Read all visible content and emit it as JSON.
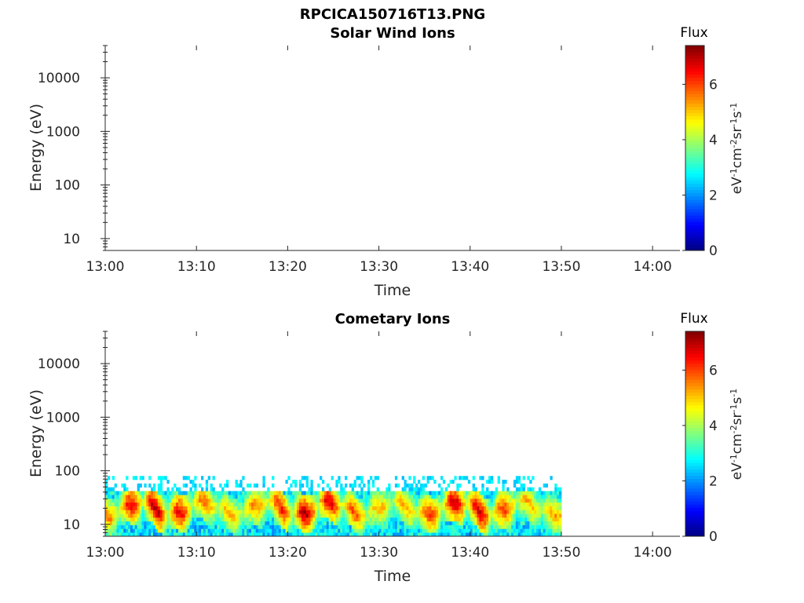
{
  "figure_title": "RPCICA150716T13.PNG",
  "chart_data": [
    {
      "type": "heatmap",
      "title": "Solar Wind Ions",
      "xlabel": "Time",
      "ylabel": "Energy (eV)",
      "x_ticks": [
        "13:00",
        "13:10",
        "13:20",
        "13:30",
        "13:40",
        "13:50",
        "14:00"
      ],
      "xlim": [
        "13:00",
        "14:03"
      ],
      "y_scale": "log",
      "y_ticks": [
        10,
        100,
        1000,
        10000
      ],
      "ylim": [
        6,
        40000
      ],
      "colorbar": {
        "label": "Flux",
        "units": [
          "eV",
          "-1",
          "cm",
          "-2",
          "sr",
          "-1",
          "s",
          "-1"
        ],
        "ticks": [
          0,
          2,
          4,
          6
        ],
        "range": [
          0,
          7.4
        ],
        "colormap": "jet"
      },
      "data_extent": null
    },
    {
      "type": "heatmap",
      "title": "Cometary Ions",
      "xlabel": "Time",
      "ylabel": "Energy (eV)",
      "x_ticks": [
        "13:00",
        "13:10",
        "13:20",
        "13:30",
        "13:40",
        "13:50",
        "14:00"
      ],
      "xlim": [
        "13:00",
        "14:03"
      ],
      "y_scale": "log",
      "y_ticks": [
        10,
        100,
        1000,
        10000
      ],
      "ylim": [
        6,
        40000
      ],
      "colorbar": {
        "label": "Flux",
        "units": [
          "eV",
          "-1",
          "cm",
          "-2",
          "sr",
          "-1",
          "s",
          "-1"
        ],
        "ticks": [
          0,
          2,
          4,
          6
        ],
        "range": [
          0,
          7.4
        ],
        "colormap": "jet"
      },
      "data_extent": {
        "time_range": [
          "13:00",
          "13:50"
        ],
        "energy_range": [
          6,
          80
        ],
        "peak_band_energy": [
          10,
          40
        ],
        "peak_flux": 7.2
      }
    }
  ]
}
